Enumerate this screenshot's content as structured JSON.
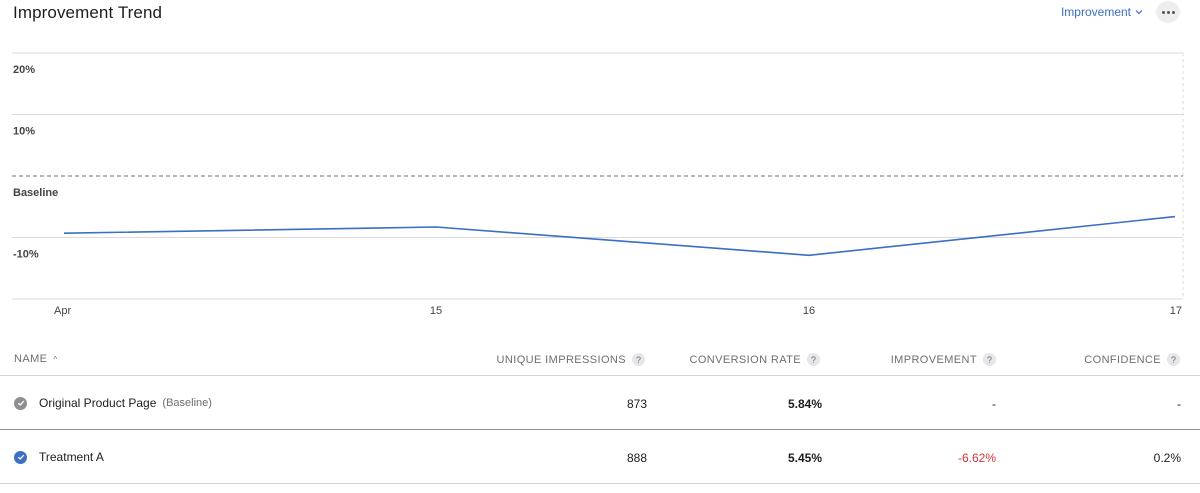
{
  "header": {
    "title": "Improvement Trend",
    "metric_label": "Improvement"
  },
  "chart_data": {
    "type": "line",
    "title": "Improvement Trend",
    "x": [
      "Apr",
      "15",
      "16",
      "17"
    ],
    "xlabel": "",
    "ylabel": "",
    "y_ticks": [
      {
        "value": 20,
        "label": "20%"
      },
      {
        "value": 10,
        "label": "10%"
      },
      {
        "value": 0,
        "label": "Baseline"
      },
      {
        "value": -10,
        "label": "-10%"
      }
    ],
    "ylim": [
      -20,
      20
    ],
    "baseline_value": 0,
    "series": [
      {
        "values": [
          -9.3,
          -8.3,
          -12.9,
          -6.6
        ],
        "color": "#3a6fc4"
      }
    ],
    "grid": true,
    "colors": {
      "line": "#3a6fc4",
      "grid": "#d9d9de",
      "baseline": "#8e8e93"
    }
  },
  "table": {
    "columns": {
      "name": "NAME",
      "impressions": "UNIQUE IMPRESSIONS",
      "conversion": "CONVERSION RATE",
      "improvement": "IMPROVEMENT",
      "confidence": "CONFIDENCE"
    },
    "help_glyph": "?",
    "sort_glyph": "^",
    "rows": [
      {
        "name": "Original Product Page",
        "tag": "(Baseline)",
        "impressions": "873",
        "conversion": "5.84%",
        "improvement": "-",
        "confidence": "-",
        "status_icon": "check-circle-grey-icon"
      },
      {
        "name": "Treatment A",
        "tag": "",
        "impressions": "888",
        "conversion": "5.45%",
        "improvement": "-6.62%",
        "confidence": "0.2%",
        "status_icon": "check-circle-blue-icon"
      }
    ]
  }
}
